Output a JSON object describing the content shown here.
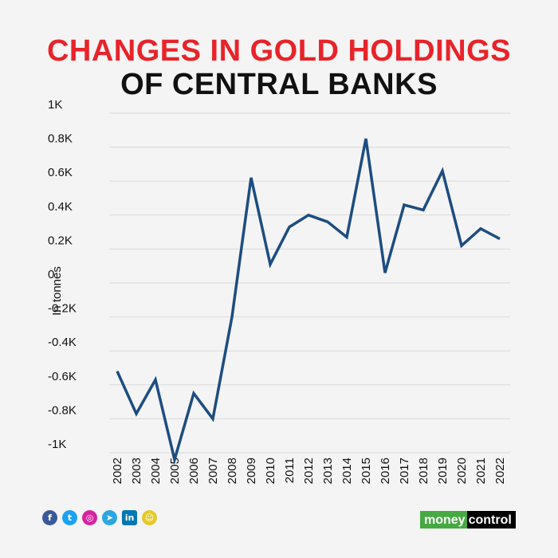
{
  "title": {
    "line1": "CHANGES IN GOLD HOLDINGS",
    "line2": "OF CENTRAL BANKS"
  },
  "colors": {
    "title_accent": "#e8232a",
    "title_dark": "#111111",
    "line": "#1d4d80",
    "grid": "#d9d9d9",
    "background": "#f4f4f4"
  },
  "chart_data": {
    "type": "line",
    "title": "CHANGES IN GOLD HOLDINGS OF CENTRAL BANKS",
    "xlabel": "",
    "ylabel": "In tonnes",
    "ylim": [
      -1000,
      1000
    ],
    "yticks": [
      1000,
      800,
      600,
      400,
      200,
      0,
      -200,
      -400,
      -600,
      -800,
      -1000
    ],
    "ytick_labels": [
      "1K",
      "0.8K",
      "0.6K",
      "0.4K",
      "0.2K",
      "0",
      "-0.2K",
      "-0.4K",
      "-0.6K",
      "-0.8K",
      "-1K"
    ],
    "grid": true,
    "legend": "none",
    "x": [
      "2002",
      "2003",
      "2004",
      "2005",
      "2006",
      "2007",
      "2008",
      "2009",
      "2010",
      "2011",
      "2012",
      "2013",
      "2014",
      "2015",
      "2016",
      "2017",
      "2018",
      "2019",
      "2020",
      "2021",
      "2022"
    ],
    "series": [
      {
        "values": [
          -520,
          -770,
          -570,
          -1040,
          -650,
          -800,
          -200,
          620,
          110,
          330,
          400,
          360,
          270,
          850,
          60,
          460,
          430,
          660,
          220,
          320,
          260
        ]
      }
    ]
  },
  "footer": {
    "social_icons": [
      "facebook-icon",
      "twitter-icon",
      "instagram-icon",
      "telegram-icon",
      "linkedin-icon",
      "snapchat-icon"
    ],
    "logo_part1": "money",
    "logo_part2": "control"
  }
}
